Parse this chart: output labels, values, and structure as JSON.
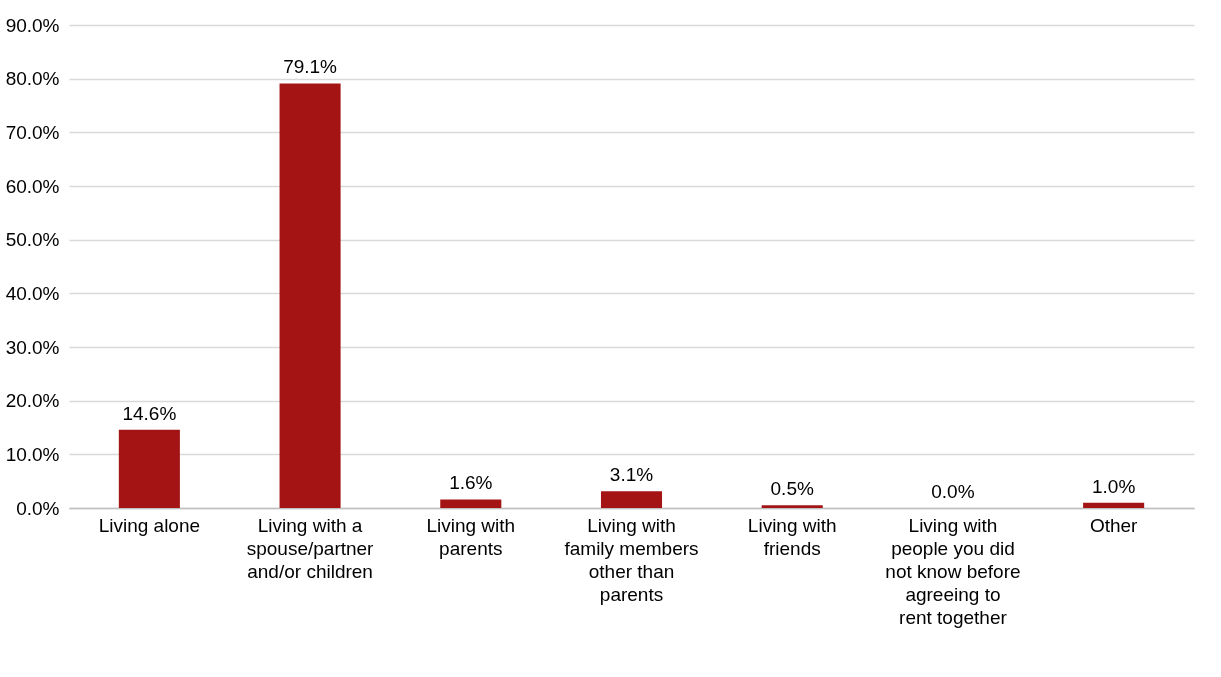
{
  "chart_data": {
    "type": "bar",
    "categories": [
      "Living alone",
      "Living with a spouse/partner and/or children",
      "Living with parents",
      "Living with family members other than parents",
      "Living with friends",
      "Living with people you did not know before agreeing to rent together",
      "Other"
    ],
    "values": [
      14.6,
      79.1,
      1.6,
      3.1,
      0.5,
      0.0,
      1.0
    ],
    "value_labels": [
      "14.6%",
      "79.1%",
      "1.6%",
      "3.1%",
      "0.5%",
      "0.0%",
      "1.0%"
    ],
    "color": "#a51414",
    "ylim": [
      0,
      90
    ],
    "yticks": [
      {
        "value": 0,
        "label": "0.0%"
      },
      {
        "value": 10,
        "label": "10.0%"
      },
      {
        "value": 20,
        "label": "20.0%"
      },
      {
        "value": 30,
        "label": "30.0%"
      },
      {
        "value": 40,
        "label": "40.0%"
      },
      {
        "value": 50,
        "label": "50.0%"
      },
      {
        "value": 60,
        "label": "60.0%"
      },
      {
        "value": 70,
        "label": "70.0%"
      },
      {
        "value": 80,
        "label": "80.0%"
      },
      {
        "value": 90,
        "label": "90.0%"
      }
    ],
    "grid": "y"
  }
}
